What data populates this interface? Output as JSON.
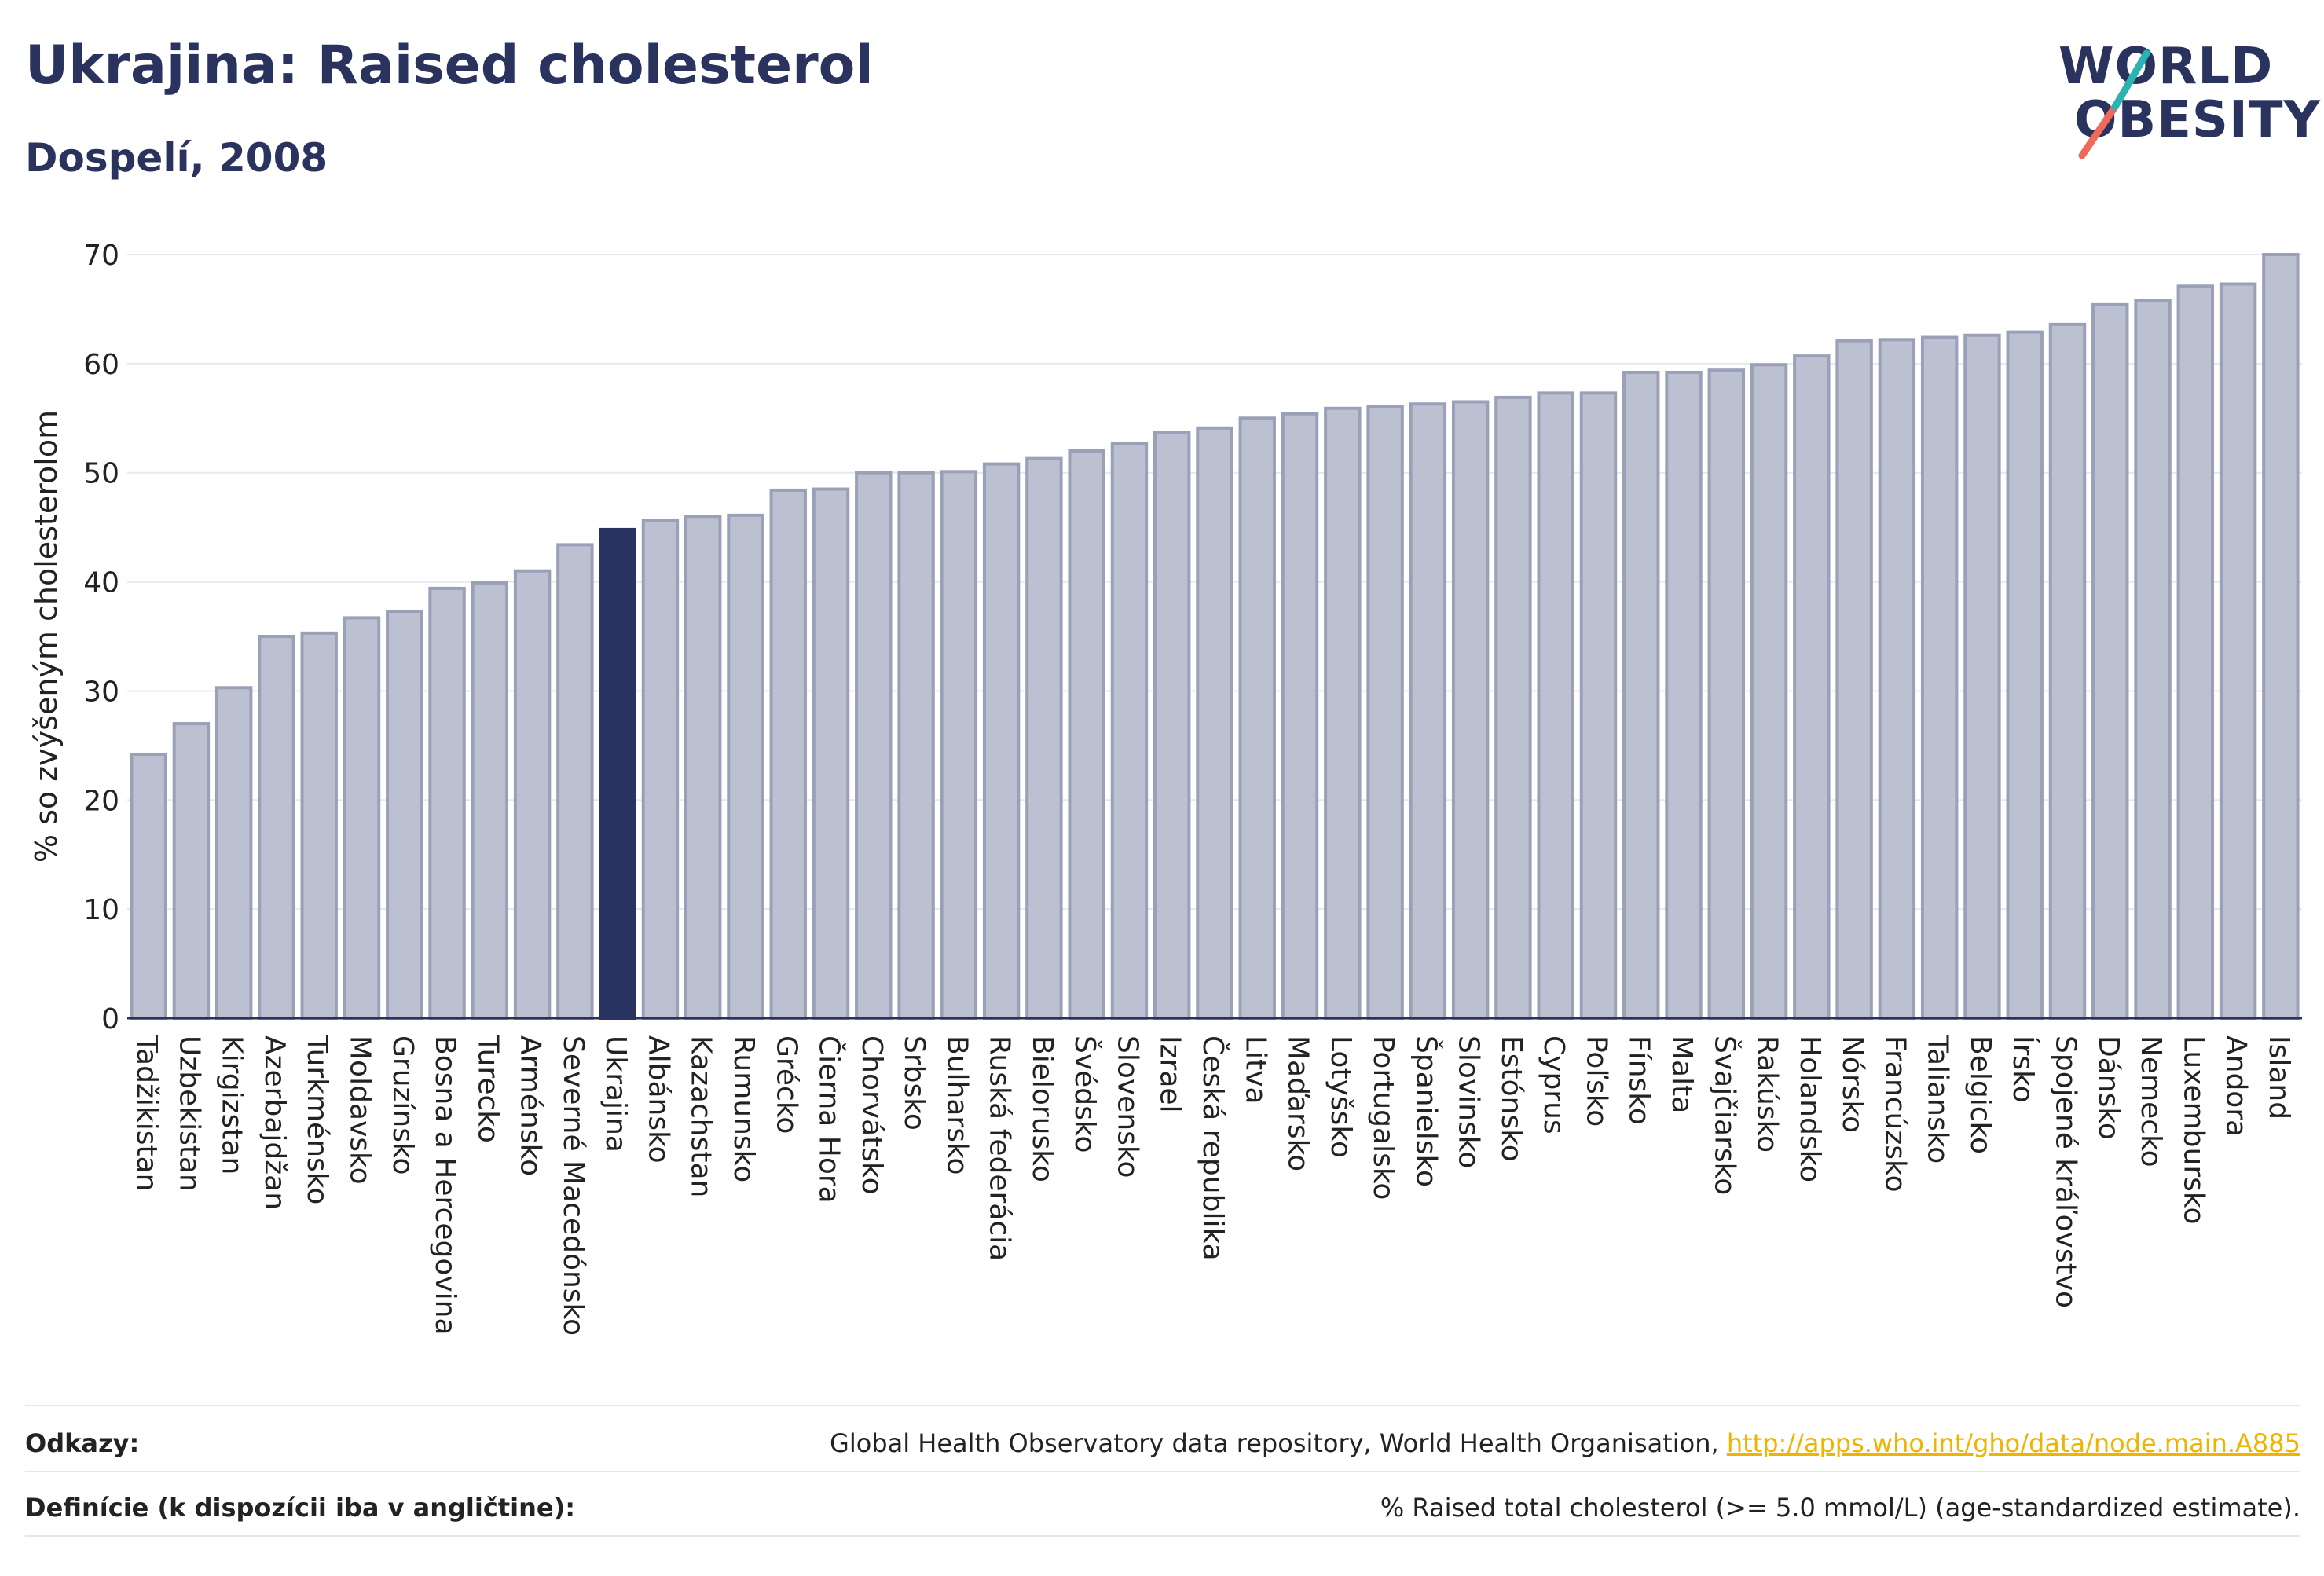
{
  "header": {
    "title": "Ukrajina: Raised cholesterol",
    "subtitle": "Dospelí, 2008"
  },
  "logo": {
    "line1": "WORLD",
    "line2": "OBESITY"
  },
  "colors": {
    "bar": "#bcc1d1",
    "bar_stroke": "#9aa0b8",
    "highlight": "#2a3462",
    "text": "#2a325e",
    "logo_teal": "#2ab3b1",
    "logo_coral": "#ef6a5b",
    "link": "#f0b400"
  },
  "chart_data": {
    "type": "bar",
    "ylabel": "% so zvýšeným cholesterolom",
    "ylim": [
      0,
      70
    ],
    "yticks": [
      0,
      10,
      20,
      30,
      40,
      50,
      60,
      70
    ],
    "grid": true,
    "highlight": "Ukrajina",
    "categories": [
      "Tadžikistan",
      "Uzbekistan",
      "Kirgizstan",
      "Azerbajdžan",
      "Turkménsko",
      "Moldavsko",
      "Gruzínsko",
      "Bosna a Hercegovina",
      "Turecko",
      "Arménsko",
      "Severné Macedónsko",
      "Ukrajina",
      "Albánsko",
      "Kazachstan",
      "Rumunsko",
      "Grécko",
      "Čierna Hora",
      "Chorvátsko",
      "Srbsko",
      "Bulharsko",
      "Ruská federácia",
      "Bielorusko",
      "Švédsko",
      "Slovensko",
      "Izrael",
      "Česká republika",
      "Litva",
      "Maďarsko",
      "Lotyšsko",
      "Portugalsko",
      "Španielsko",
      "Slovinsko",
      "Estónsko",
      "Cyprus",
      "Poľsko",
      "Fínsko",
      "Malta",
      "Švajčiarsko",
      "Rakúsko",
      "Holandsko",
      "Nórsko",
      "Francúzsko",
      "Taliansko",
      "Belgicko",
      "Írsko",
      "Spojené kráľovstvo",
      "Dánsko",
      "Nemecko",
      "Luxembursko",
      "Andora",
      "Island"
    ],
    "values": [
      24.2,
      27.0,
      30.3,
      35.0,
      35.3,
      36.7,
      37.3,
      39.4,
      39.9,
      41.0,
      43.4,
      44.8,
      45.6,
      46.0,
      46.1,
      48.4,
      48.5,
      50.0,
      50.0,
      50.1,
      50.8,
      51.3,
      52.0,
      52.7,
      53.7,
      54.1,
      55.0,
      55.4,
      55.9,
      56.1,
      56.3,
      56.5,
      56.9,
      57.3,
      57.3,
      59.2,
      59.2,
      59.4,
      59.9,
      60.7,
      62.1,
      62.2,
      62.4,
      62.6,
      62.9,
      63.6,
      65.4,
      65.8,
      67.1,
      67.3,
      70.0
    ]
  },
  "footer": {
    "sources_label": "Odkazy:",
    "sources_text": "Global Health Observatory data repository, World Health Organisation, ",
    "sources_link": "http://apps.who.int/gho/data/node.main.A885",
    "definition_label": "Definície (k dispozícii iba v angličtine):",
    "definition_text": "% Raised total cholesterol (>= 5.0 mmol/L) (age-standardized estimate)."
  }
}
